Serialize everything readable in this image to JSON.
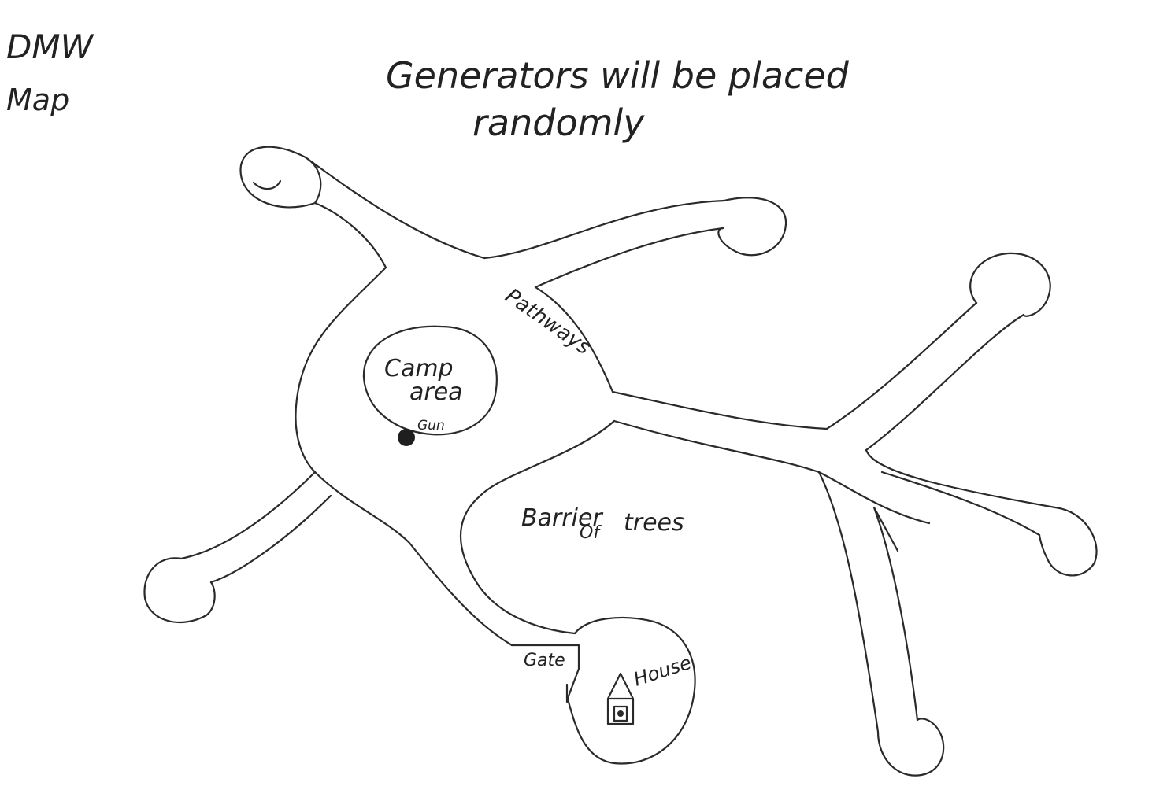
{
  "corner_title": {
    "line1": "DMW",
    "line2": "Map"
  },
  "heading": {
    "line1": "Generators will be placed",
    "line2": "randomly"
  },
  "labels": {
    "pathways": "Pathways",
    "camp_line1": "Camp",
    "camp_line2": "area",
    "gun": "Gun",
    "barrier_line1": "Barrier",
    "barrier_line2": "Of",
    "barrier_line3": "trees",
    "gate": "Gate",
    "house": "House"
  },
  "colors": {
    "ink": "#2a2a2a",
    "paper": "#ffffff"
  }
}
